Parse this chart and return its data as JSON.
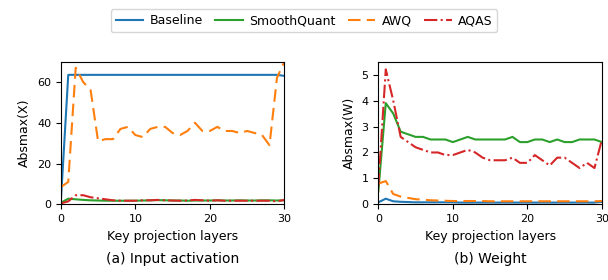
{
  "legend_labels": [
    "Baseline",
    "SmoothQuant",
    "AWQ",
    "AQAS"
  ],
  "legend_colors": [
    "#1f77b4",
    "#2ca02c",
    "#ff7f0e",
    "#d62728"
  ],
  "legend_styles": [
    "-",
    "-",
    "--",
    "-."
  ],
  "xlabel": "Key projection layers",
  "ylabel_left": "Absmax(X)",
  "ylabel_right": "Absmax(W)",
  "subtitle_left": "(a) Input activation",
  "subtitle_right": "(b) Weight",
  "x": [
    0,
    1,
    2,
    3,
    4,
    5,
    6,
    7,
    8,
    9,
    10,
    11,
    12,
    13,
    14,
    15,
    16,
    17,
    18,
    19,
    20,
    21,
    22,
    23,
    24,
    25,
    26,
    27,
    28,
    29,
    30
  ],
  "left_baseline": [
    1.0,
    63.5,
    63.5,
    63.5,
    63.5,
    63.5,
    63.5,
    63.5,
    63.5,
    63.5,
    63.5,
    63.5,
    63.5,
    63.5,
    63.5,
    63.5,
    63.5,
    63.5,
    63.5,
    63.5,
    63.5,
    63.5,
    63.5,
    63.5,
    63.5,
    63.5,
    63.5,
    63.5,
    63.5,
    63.5,
    63.0
  ],
  "left_smoothquant": [
    0.8,
    2.8,
    2.5,
    2.2,
    2.0,
    1.9,
    1.8,
    1.8,
    1.8,
    1.8,
    1.8,
    1.9,
    2.0,
    2.1,
    2.0,
    1.9,
    1.9,
    1.8,
    1.9,
    1.9,
    1.9,
    2.0,
    1.9,
    1.9,
    2.0,
    1.9,
    1.9,
    2.0,
    2.0,
    1.9,
    2.0
  ],
  "left_awq": [
    8.5,
    11.0,
    67.0,
    60.0,
    56.0,
    31.0,
    32.0,
    32.0,
    37.0,
    38.0,
    34.0,
    33.0,
    37.0,
    38.0,
    38.0,
    35.0,
    34.0,
    36.0,
    40.0,
    36.0,
    36.0,
    38.0,
    36.0,
    36.0,
    35.0,
    36.0,
    35.0,
    34.0,
    29.0,
    62.0,
    70.0
  ],
  "left_aqas": [
    0.5,
    1.5,
    4.5,
    4.5,
    3.5,
    3.0,
    2.5,
    2.0,
    1.8,
    1.8,
    1.8,
    2.0,
    2.0,
    2.2,
    2.0,
    1.9,
    1.8,
    1.9,
    2.2,
    2.0,
    1.8,
    2.0,
    1.8,
    1.8,
    1.8,
    1.8,
    1.8,
    1.8,
    1.8,
    1.5,
    2.2
  ],
  "right_baseline": [
    0.08,
    0.22,
    0.12,
    0.1,
    0.09,
    0.08,
    0.08,
    0.08,
    0.08,
    0.08,
    0.08,
    0.07,
    0.07,
    0.07,
    0.07,
    0.07,
    0.07,
    0.07,
    0.07,
    0.07,
    0.07,
    0.07,
    0.07,
    0.07,
    0.07,
    0.07,
    0.07,
    0.07,
    0.07,
    0.07,
    0.1
  ],
  "right_smoothquant": [
    0.5,
    3.9,
    3.5,
    2.8,
    2.7,
    2.6,
    2.6,
    2.5,
    2.5,
    2.5,
    2.4,
    2.5,
    2.6,
    2.5,
    2.5,
    2.5,
    2.5,
    2.5,
    2.6,
    2.4,
    2.4,
    2.5,
    2.5,
    2.4,
    2.5,
    2.4,
    2.4,
    2.5,
    2.5,
    2.5,
    2.4
  ],
  "right_awq": [
    0.8,
    0.9,
    0.4,
    0.3,
    0.25,
    0.2,
    0.18,
    0.16,
    0.15,
    0.14,
    0.13,
    0.13,
    0.13,
    0.13,
    0.13,
    0.12,
    0.12,
    0.12,
    0.12,
    0.12,
    0.12,
    0.12,
    0.12,
    0.12,
    0.12,
    0.12,
    0.12,
    0.12,
    0.12,
    0.12,
    0.13
  ],
  "right_aqas": [
    0.7,
    5.2,
    4.0,
    2.6,
    2.4,
    2.2,
    2.1,
    2.0,
    2.0,
    1.9,
    1.9,
    2.0,
    2.1,
    2.0,
    1.8,
    1.7,
    1.7,
    1.7,
    1.8,
    1.6,
    1.6,
    1.9,
    1.7,
    1.5,
    1.8,
    1.8,
    1.6,
    1.4,
    1.6,
    1.4,
    2.5
  ],
  "left_ylim": [
    0,
    70
  ],
  "right_ylim": [
    0,
    5.5
  ],
  "xlim": [
    0,
    30
  ],
  "xticks": [
    0,
    10,
    20,
    30
  ],
  "figsize": [
    6.08,
    2.8
  ],
  "dpi": 100
}
